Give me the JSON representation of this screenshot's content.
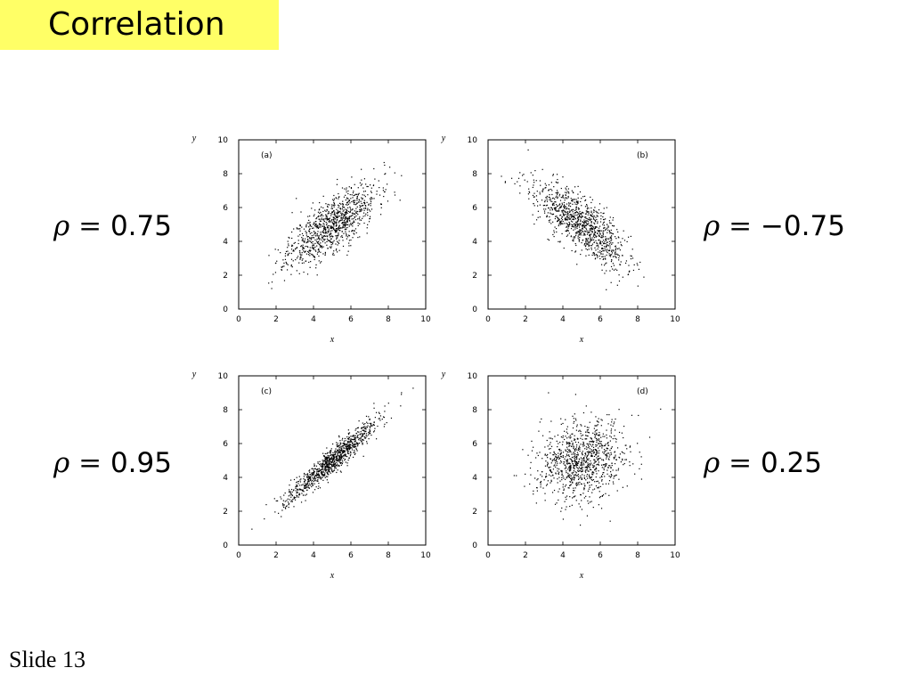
{
  "slide": {
    "title": "Correlation",
    "footer": "Slide 13"
  },
  "colors": {
    "title_bg": "#ffff66",
    "points": "#000000"
  },
  "rho_labels": [
    {
      "symbol": "ρ",
      "eq": "=",
      "value": "0.75"
    },
    {
      "symbol": "ρ",
      "eq": "=",
      "value": "−0.75"
    },
    {
      "symbol": "ρ",
      "eq": "=",
      "value": "0.95"
    },
    {
      "symbol": "ρ",
      "eq": "=",
      "value": "0.25"
    }
  ],
  "chart_data": [
    {
      "type": "scatter",
      "panel": "(a)",
      "correlation": 0.75,
      "xlabel": "x",
      "ylabel": "y",
      "xlim": [
        0,
        10
      ],
      "ylim": [
        0,
        10
      ],
      "xticks": [
        0,
        2,
        4,
        6,
        8,
        10
      ],
      "yticks": [
        0,
        2,
        4,
        6,
        8,
        10
      ],
      "n_points": 1000,
      "mean": [
        5,
        5
      ],
      "sd": [
        1.2,
        1.2
      ],
      "seed": 11
    },
    {
      "type": "scatter",
      "panel": "(b)",
      "correlation": -0.75,
      "xlabel": "x",
      "ylabel": "y",
      "xlim": [
        0,
        10
      ],
      "ylim": [
        0,
        10
      ],
      "xticks": [
        0,
        2,
        4,
        6,
        8,
        10
      ],
      "yticks": [
        0,
        2,
        4,
        6,
        8,
        10
      ],
      "n_points": 1000,
      "mean": [
        5,
        5
      ],
      "sd": [
        1.2,
        1.2
      ],
      "seed": 22
    },
    {
      "type": "scatter",
      "panel": "(c)",
      "correlation": 0.95,
      "xlabel": "x",
      "ylabel": "y",
      "xlim": [
        0,
        10
      ],
      "ylim": [
        0,
        10
      ],
      "xticks": [
        0,
        2,
        4,
        6,
        8,
        10
      ],
      "yticks": [
        0,
        2,
        4,
        6,
        8,
        10
      ],
      "n_points": 1000,
      "mean": [
        5,
        5
      ],
      "sd": [
        1.2,
        1.2
      ],
      "seed": 33
    },
    {
      "type": "scatter",
      "panel": "(d)",
      "correlation": 0.25,
      "xlabel": "x",
      "ylabel": "y",
      "xlim": [
        0,
        10
      ],
      "ylim": [
        0,
        10
      ],
      "xticks": [
        0,
        2,
        4,
        6,
        8,
        10
      ],
      "yticks": [
        0,
        2,
        4,
        6,
        8,
        10
      ],
      "n_points": 1000,
      "mean": [
        5,
        5
      ],
      "sd": [
        1.2,
        1.2
      ],
      "seed": 44
    }
  ]
}
